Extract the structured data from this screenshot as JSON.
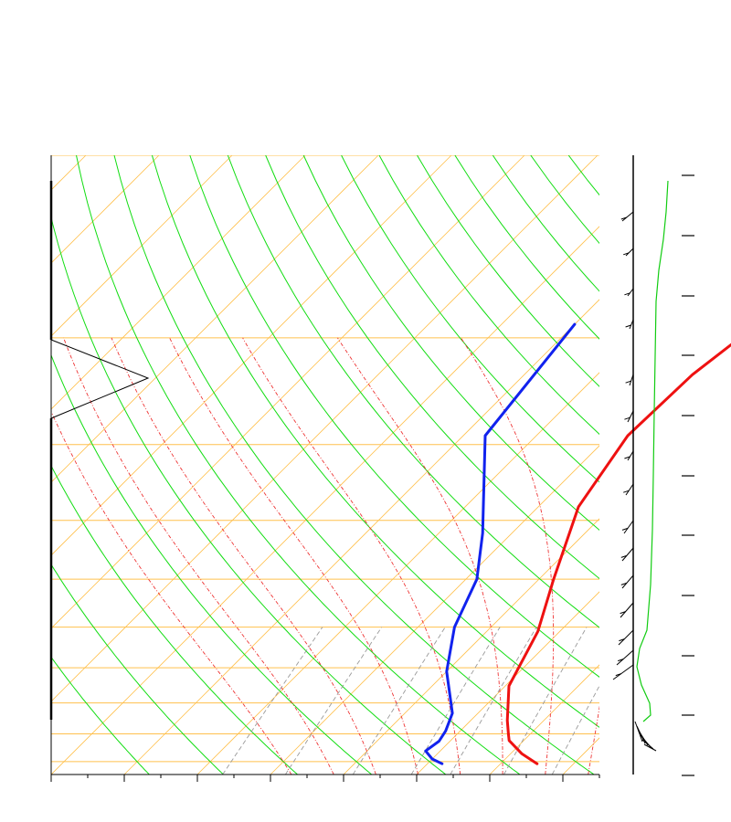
{
  "chart_data": {
    "type": "line",
    "title": "",
    "xlabel": "",
    "ylabel": "",
    "skewt": {
      "xlim": [
        -40,
        35
      ],
      "pressure_range_hpa": [
        1050,
        100
      ],
      "isobars_hpa": [
        1000,
        900,
        800,
        700,
        600,
        500,
        400,
        300,
        200,
        100
      ],
      "temperature_ticks_c": [
        -40,
        -35,
        -30,
        -25,
        -20,
        -15,
        -10,
        -5,
        0,
        5,
        10,
        15,
        20,
        25,
        30,
        35
      ],
      "series": [
        {
          "role": "temperature",
          "color": "#ee1111",
          "points": [
            [
              -5,
              190
            ],
            [
              -7,
              230
            ],
            [
              -7.5,
              290
            ],
            [
              -4.5,
              380
            ],
            [
              2,
              500
            ],
            [
              7,
              610
            ],
            [
              10.5,
              750
            ],
            [
              15,
              855
            ],
            [
              17,
              900
            ],
            [
              18,
              923
            ],
            [
              21.5,
              970
            ],
            [
              25,
              1008
            ]
          ]
        },
        {
          "role": "dewpoint",
          "color": "#1122ee",
          "points": [
            [
              -30,
              190
            ],
            [
              -27,
              290
            ],
            [
              -14,
              420
            ],
            [
              -8.5,
              500
            ],
            [
              -5,
              600
            ],
            [
              0,
              710
            ],
            [
              6.5,
              832
            ],
            [
              8,
              890
            ],
            [
              8.5,
              925
            ],
            [
              8,
              960
            ],
            [
              10,
              990
            ],
            [
              12,
              1008
            ]
          ]
        }
      ],
      "hodograph_profile_color": "#11cc11",
      "wind_barb_color": "#000000",
      "grid_colors": {
        "isobar": "#ffc04d",
        "isotherm": "#ffc04d",
        "dry_adiabat": "#11dd11",
        "moist_adiabat": "#ee3333",
        "mixing_ratio": "#999999"
      }
    }
  }
}
